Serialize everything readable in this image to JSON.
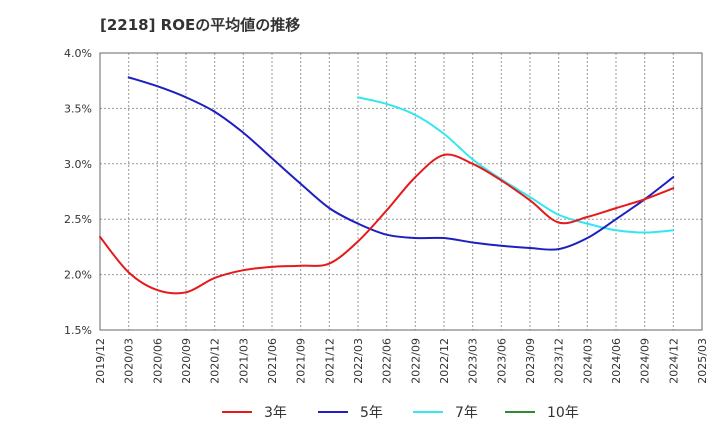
{
  "chart_data": {
    "type": "line",
    "title": "[2218]  ROEの平均値の推移",
    "xlabel": "",
    "ylabel": "",
    "ylim": [
      1.5,
      4.0
    ],
    "yticks": [
      {
        "value": 1.5,
        "label": "1.5%"
      },
      {
        "value": 2.0,
        "label": "2.0%"
      },
      {
        "value": 2.5,
        "label": "2.5%"
      },
      {
        "value": 3.0,
        "label": "3.0%"
      },
      {
        "value": 3.5,
        "label": "3.5%"
      },
      {
        "value": 4.0,
        "label": "4.0%"
      }
    ],
    "categories": [
      "2019/12",
      "2020/03",
      "2020/06",
      "2020/09",
      "2020/12",
      "2021/03",
      "2021/06",
      "2021/09",
      "2021/12",
      "2022/03",
      "2022/06",
      "2022/09",
      "2022/12",
      "2023/03",
      "2023/06",
      "2023/09",
      "2023/12",
      "2024/03",
      "2024/06",
      "2024/09",
      "2024/12",
      "2025/03"
    ],
    "series": [
      {
        "name": "3年",
        "color": "#e41a1c",
        "values": [
          2.34,
          2.02,
          1.86,
          1.84,
          1.97,
          2.04,
          2.07,
          2.08,
          2.1,
          2.3,
          2.58,
          2.88,
          3.08,
          3.0,
          2.85,
          2.67,
          2.47,
          2.52,
          2.6,
          2.68,
          2.78,
          null
        ]
      },
      {
        "name": "5年",
        "color": "#1f1fbf",
        "values": [
          null,
          3.78,
          3.7,
          3.6,
          3.47,
          3.28,
          3.05,
          2.82,
          2.6,
          2.46,
          2.36,
          2.33,
          2.33,
          2.29,
          2.26,
          2.24,
          2.23,
          2.33,
          2.5,
          2.68,
          2.88,
          null
        ]
      },
      {
        "name": "7年",
        "color": "#33e6f0",
        "values": [
          null,
          null,
          null,
          null,
          null,
          null,
          null,
          null,
          null,
          3.6,
          3.54,
          3.44,
          3.27,
          3.04,
          2.86,
          2.7,
          2.54,
          2.46,
          2.4,
          2.38,
          2.4,
          null
        ]
      },
      {
        "name": "10年",
        "color": "#2e8b2e",
        "values": [
          null,
          null,
          null,
          null,
          null,
          null,
          null,
          null,
          null,
          null,
          null,
          null,
          null,
          null,
          null,
          null,
          null,
          null,
          null,
          null,
          null,
          null
        ]
      }
    ],
    "legend_position": "bottom",
    "grid": true
  }
}
